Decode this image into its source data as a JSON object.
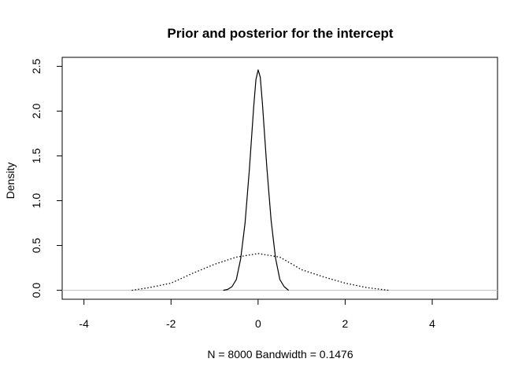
{
  "chart_data": {
    "type": "line",
    "title": "Prior and posterior for the intercept",
    "xlabel": "N = 8000   Bandwidth = 0.1476",
    "ylabel": "Density",
    "xlim": [
      -4.5,
      5.5
    ],
    "ylim": [
      -0.1,
      2.6
    ],
    "x_ticks": [
      "-4",
      "-2",
      "0",
      "2",
      "4"
    ],
    "y_ticks": [
      "0.0",
      "0.5",
      "1.0",
      "1.5",
      "2.0",
      "2.5"
    ],
    "baseline": 0,
    "baseline_color": "#bebebe",
    "grid": false,
    "legend": "none",
    "series": [
      {
        "line_style": "solid",
        "x": [
          -0.8,
          -0.7,
          -0.6,
          -0.5,
          -0.4,
          -0.3,
          -0.2,
          -0.1,
          -0.05,
          0.0,
          0.05,
          0.1,
          0.2,
          0.3,
          0.4,
          0.5,
          0.6,
          0.7
        ],
        "y": [
          0.0,
          0.01,
          0.04,
          0.12,
          0.35,
          0.75,
          1.35,
          2.05,
          2.35,
          2.46,
          2.38,
          2.08,
          1.38,
          0.78,
          0.36,
          0.12,
          0.04,
          0.0
        ]
      },
      {
        "line_style": "dotted",
        "x": [
          -2.9,
          -2.5,
          -2.0,
          -1.5,
          -1.0,
          -0.5,
          0.0,
          0.5,
          1.0,
          1.5,
          2.0,
          2.5,
          3.0
        ],
        "y": [
          0.0,
          0.03,
          0.08,
          0.19,
          0.29,
          0.37,
          0.41,
          0.37,
          0.23,
          0.15,
          0.08,
          0.03,
          0.0
        ]
      }
    ]
  }
}
